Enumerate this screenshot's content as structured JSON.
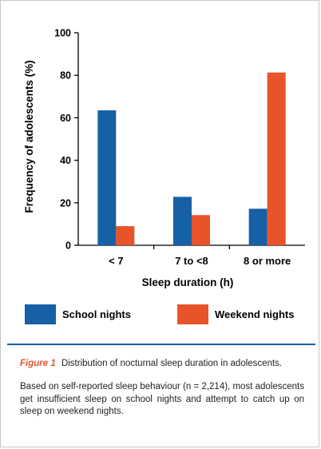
{
  "chart_data": {
    "type": "bar",
    "categories": [
      "< 7",
      "7 to <8",
      "8 or more"
    ],
    "series": [
      {
        "name": "School nights",
        "values": [
          63.5,
          22.8,
          17.2
        ],
        "color": "#1660a6"
      },
      {
        "name": "Weekend nights",
        "values": [
          9.0,
          14.2,
          81.3
        ],
        "color": "#e8542a"
      }
    ],
    "xlabel": "Sleep duration (h)",
    "ylabel": "Frequency of adolescents (%)",
    "ylim": [
      0,
      100
    ],
    "yticks": [
      0,
      20,
      40,
      60,
      80,
      100
    ],
    "legend_position": "bottom",
    "grid": false
  },
  "caption": {
    "label": "Figure 1",
    "title": "Distribution of nocturnal sleep duration in adolescents.",
    "body": "Based on self-reported sleep behaviour (n = 2,214), most adolescents get insufficient sleep on school nights and attempt to catch up on sleep on weekend nights."
  }
}
